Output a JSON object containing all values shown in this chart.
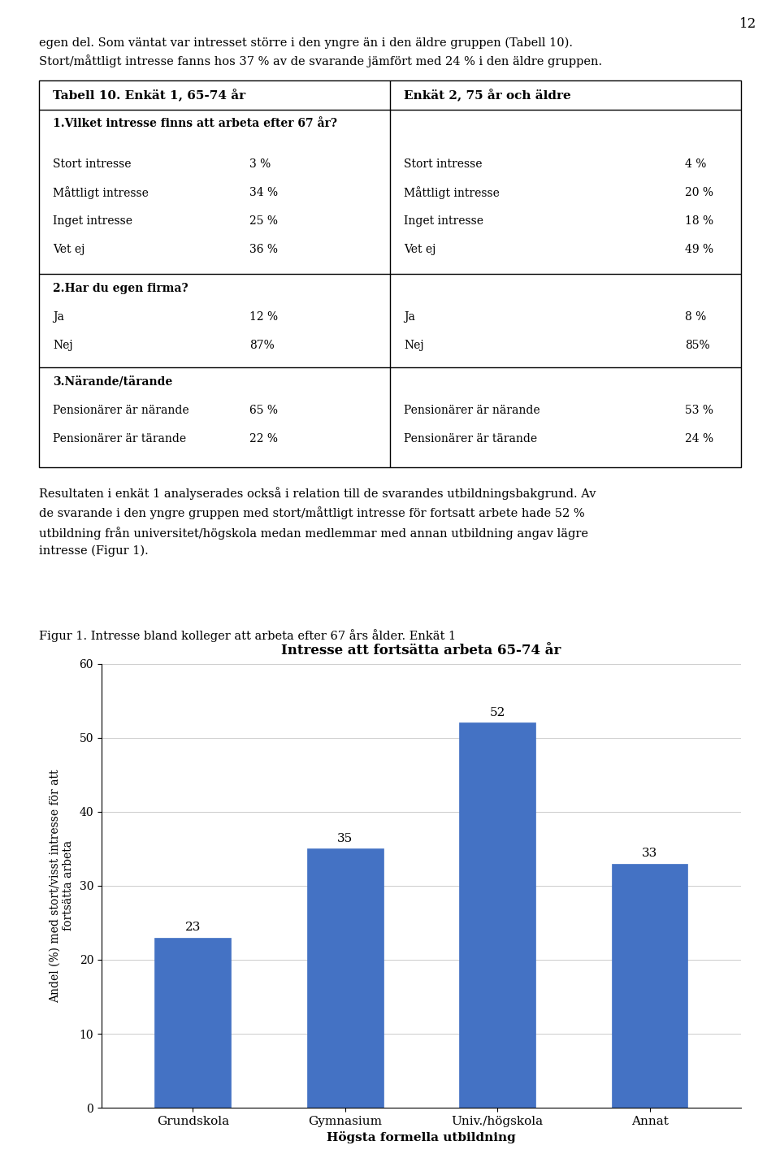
{
  "page_number": "12",
  "intro_text_line1": "egen del. Som väntat var intresset större i den yngre än i den äldre gruppen (Tabell 10).",
  "intro_text_line2": "Stort/måttligt intresse fanns hos 37 % av de svarande jämfört med 24 % i den äldre gruppen.",
  "table_header_left": "Tabell 10. Enkät 1, 65-74 år",
  "table_header_right": "Enkät 2, 75 år och äldre",
  "section1_title": "1.Vilket intresse finns att arbeta efter 67 år?",
  "section1_left": [
    [
      "Stort intresse",
      "3 %"
    ],
    [
      "Måttligt intresse",
      "34 %"
    ],
    [
      "Inget intresse",
      "25 %"
    ],
    [
      "Vet ej",
      "36 %"
    ]
  ],
  "section1_right": [
    [
      "Stort intresse",
      "4 %"
    ],
    [
      "Måttligt intresse",
      "20 %"
    ],
    [
      "Inget intresse",
      "18 %"
    ],
    [
      "Vet ej",
      "49 %"
    ]
  ],
  "section2_title": "2.Har du egen firma?",
  "section2_left": [
    [
      "Ja",
      "12 %"
    ],
    [
      "Nej",
      "87%"
    ]
  ],
  "section2_right": [
    [
      "Ja",
      "8 %"
    ],
    [
      "Nej",
      "85%"
    ]
  ],
  "section3_title": "3.Närande/tärande",
  "section3_left": [
    [
      "Pensionärer är närande",
      "65 %"
    ],
    [
      "Pensionärer är tärande",
      "22 %"
    ]
  ],
  "section3_right": [
    [
      "Pensionärer är närande",
      "53 %"
    ],
    [
      "Pensionärer är tärande",
      "24 %"
    ]
  ],
  "result_text": "Resultaten i enkät 1 analyserades också i relation till de svarandes utbildningsbakgrund. Av\nde svarande i den yngre gruppen med stort/måttligt intresse för fortsatt arbete hade 52 %\nutbildning från universitet/högskola medan medlemmar med annan utbildning angav lägre\nintresse (Figur 1).",
  "figur_caption": "Figur 1. Intresse bland kolleger att arbeta efter 67 års ålder. Enkät 1",
  "chart_title": "Intresse att fortsätta arbeta 65-74 år",
  "chart_categories": [
    "Grundskola",
    "Gymnasium",
    "Univ./högskola",
    "Annat"
  ],
  "chart_values": [
    23,
    35,
    52,
    33
  ],
  "chart_xlabel": "Högsta formella utbildning",
  "chart_ylabel": "Andel (%) med stort/visst intresse för att\nfortsätta arbeta",
  "chart_ylim": [
    0,
    60
  ],
  "chart_yticks": [
    0,
    10,
    20,
    30,
    40,
    50,
    60
  ],
  "bar_color": "#4472C4",
  "background_color": "#ffffff",
  "text_color": "#000000",
  "font_family": "serif"
}
